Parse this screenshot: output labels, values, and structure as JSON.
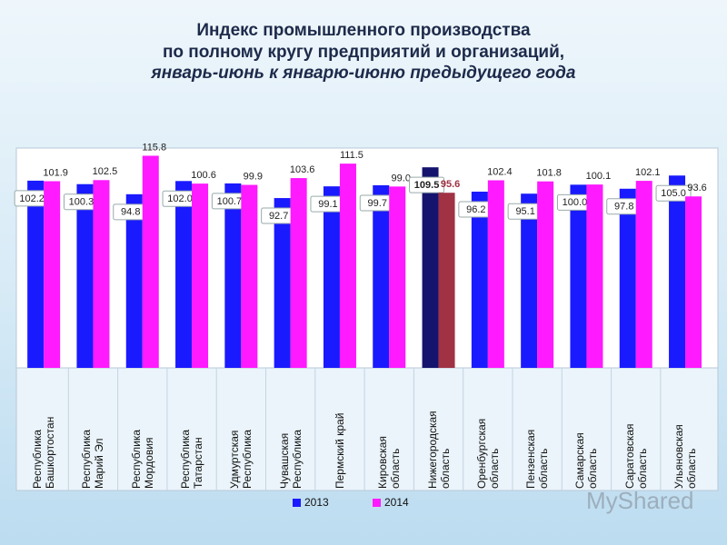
{
  "chart_data": {
    "type": "bar",
    "title": "Индекс промышленного производства\nпо полному кругу предприятий и организаций,",
    "subtitle": "январь-июнь к январю-июню предыдущего года",
    "categories": [
      "Республика\nБашкортостан",
      "Республика\nМарий Эл",
      "Республика\nМордовия",
      "Республика\nТатарстан",
      "Удмуртская\nРеспублика",
      "Чувашская\nРеспублика",
      "Пермский край",
      "Кировская\nобласть",
      "Нижегородская\nобласть",
      "Оренбургская\nобласть",
      "Пензенская\nобласть",
      "Самарская\nобласть",
      "Саратовская\nобласть",
      "Ульяновская\nобласть"
    ],
    "series": [
      {
        "name": "2013",
        "color": "#1a1aff",
        "colors": [
          "#1a1aff",
          "#1a1aff",
          "#1a1aff",
          "#1a1aff",
          "#1a1aff",
          "#1a1aff",
          "#1a1aff",
          "#1a1aff",
          "#14146e",
          "#1a1aff",
          "#1a1aff",
          "#1a1aff",
          "#1a1aff",
          "#1a1aff"
        ],
        "values": [
          102.2,
          100.3,
          94.8,
          102.0,
          100.7,
          92.7,
          99.1,
          99.7,
          109.5,
          96.2,
          95.1,
          100.0,
          97.8,
          105.0
        ],
        "value_labels": [
          "102.2",
          "100.3",
          "94.8",
          "102.0",
          "100.7",
          "92.7",
          "99.1",
          "99.7",
          "109.5",
          "96.2",
          "95.1",
          "100.0",
          "97.8",
          "105.0"
        ]
      },
      {
        "name": "2014",
        "color": "#ff1aff",
        "colors": [
          "#ff1aff",
          "#ff1aff",
          "#ff1aff",
          "#ff1aff",
          "#ff1aff",
          "#ff1aff",
          "#ff1aff",
          "#ff1aff",
          "#a03244",
          "#ff1aff",
          "#ff1aff",
          "#ff1aff",
          "#ff1aff",
          "#ff1aff"
        ],
        "values": [
          101.9,
          102.5,
          115.8,
          100.6,
          99.9,
          103.6,
          111.5,
          99.0,
          95.6,
          102.4,
          101.8,
          100.1,
          102.1,
          93.6
        ],
        "value_labels": [
          "101.9",
          "102.5",
          "115.8",
          "100.6",
          "99.9",
          "103.6",
          "111.5",
          "99.0",
          "95.6",
          "102.4",
          "101.8",
          "100.1",
          "102.1",
          "93.6"
        ]
      }
    ],
    "ylim": [
      0,
      120
    ],
    "watermark": "MyShared"
  }
}
